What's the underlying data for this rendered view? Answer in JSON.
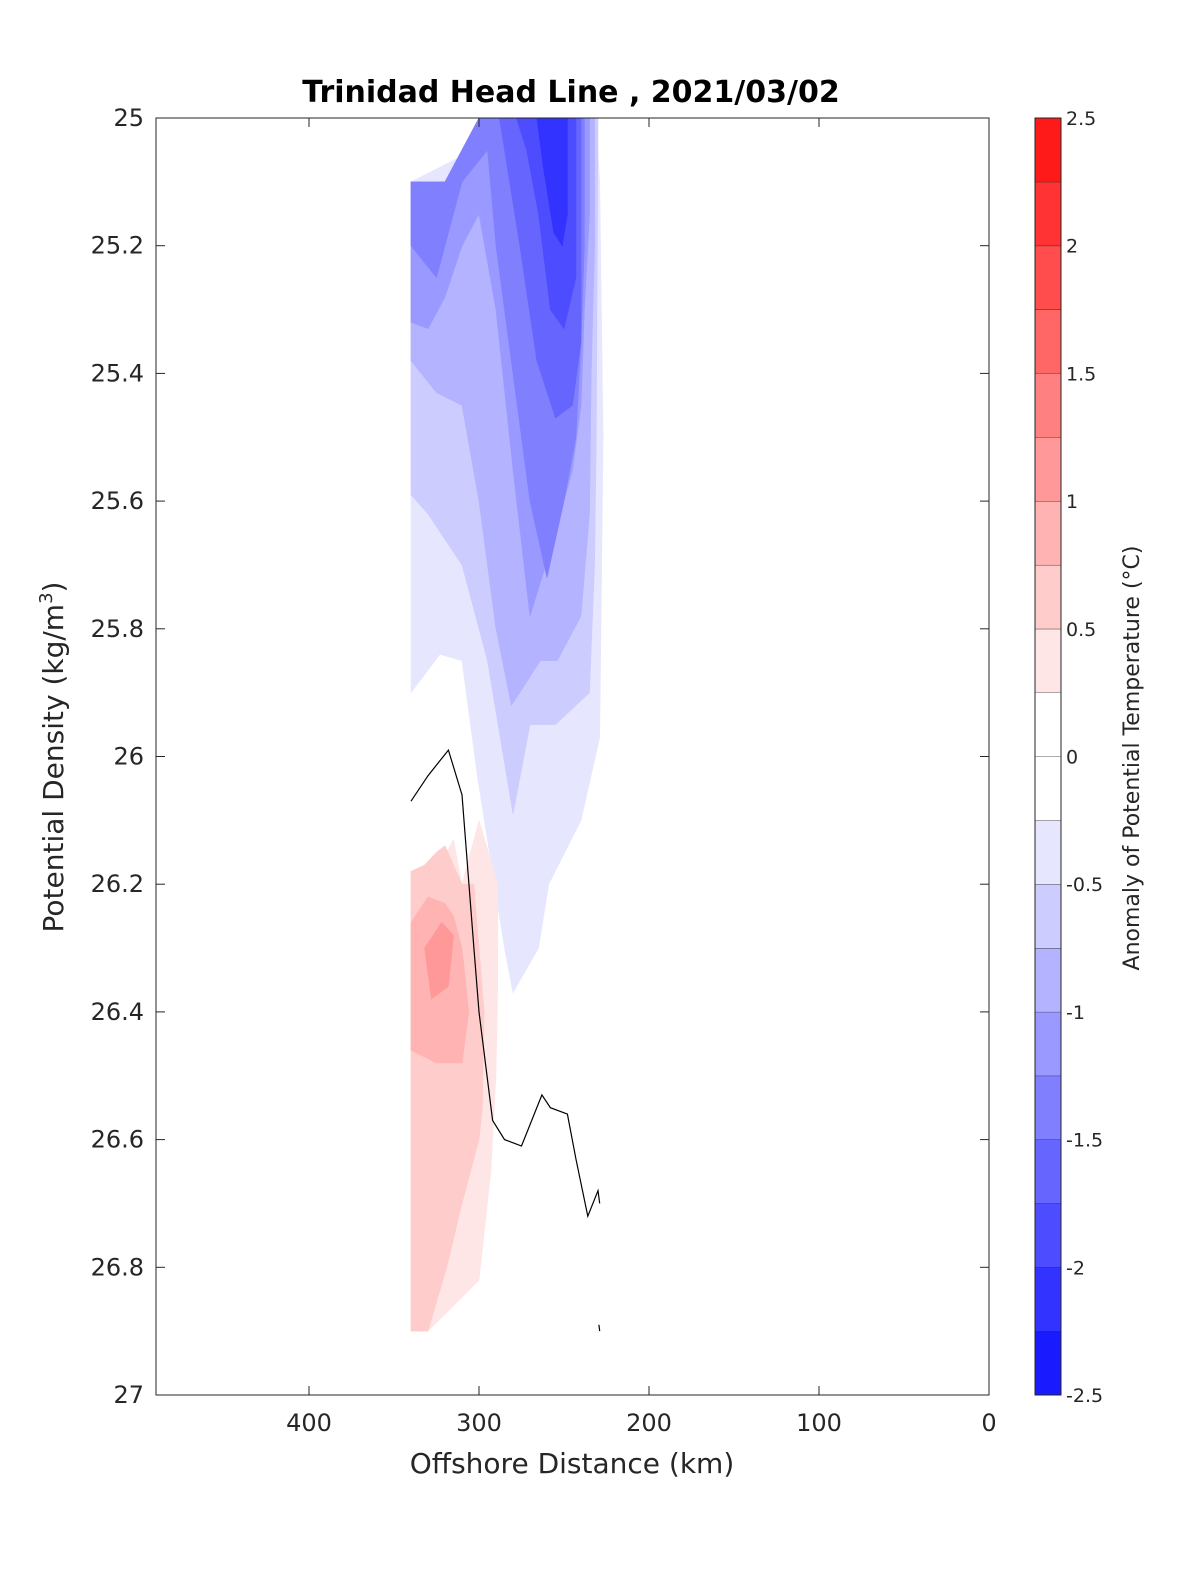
{
  "chart_data": {
    "type": "contour",
    "title": "Trinidad Head Line , 2021/03/02",
    "xlabel": "Offshore Distance (km)",
    "ylabel": "Potential Density (kg/m",
    "ylabel_sup": "3",
    "ylabel_suffix": ")",
    "xlim": [
      490,
      0
    ],
    "ylim": [
      25,
      27
    ],
    "x_reversed": true,
    "y_reversed": true,
    "xticks": [
      400,
      300,
      200,
      100,
      0
    ],
    "xtick_labels": [
      "400",
      "300",
      "200",
      "100",
      "0"
    ],
    "yticks": [
      25,
      25.2,
      25.4,
      25.6,
      25.8,
      26,
      26.2,
      26.4,
      26.6,
      26.8,
      27
    ],
    "ytick_labels": [
      "25",
      "25.2",
      "25.4",
      "25.6",
      "25.8",
      "26",
      "26.2",
      "26.4",
      "26.6",
      "26.8",
      "27"
    ],
    "colorbar": {
      "label": "Anomaly of Potential Temperature (°C)",
      "range": [
        -2.5,
        2.5
      ],
      "levels": [
        -2.5,
        -2.25,
        -2,
        -1.75,
        -1.5,
        -1.25,
        -1,
        -0.75,
        -0.5,
        -0.25,
        0,
        0.25,
        0.5,
        0.75,
        1,
        1.25,
        1.5,
        1.75,
        2,
        2.25,
        2.5
      ],
      "ticks": [
        2.5,
        2,
        1.5,
        1,
        0.5,
        0,
        -0.5,
        -1,
        -1.5,
        -2,
        -2.5
      ],
      "tick_labels": [
        "2.5",
        "2",
        "1.5",
        "1",
        "0.5",
        "0",
        "-0.5",
        "-1",
        "-1.5",
        "-2",
        "-2.5"
      ],
      "colors": [
        "#0000ff",
        "#1a1aff",
        "#3333ff",
        "#4d4dff",
        "#6666ff",
        "#8080ff",
        "#9999ff",
        "#b3b3ff",
        "#ccccff",
        "#e6e6ff",
        "#ffffff",
        "#ffffff",
        "#ffe6e6",
        "#ffcccc",
        "#ffb3b3",
        "#ff9999",
        "#ff8080",
        "#ff6666",
        "#ff4d4d",
        "#ff3333",
        "#ff1a1a",
        "#ff0000"
      ]
    },
    "filled_regions": [
      {
        "min": -0.5,
        "max": -0.25,
        "color": "#e6e6ff",
        "x": [
          340,
          340,
          323,
          310,
          301,
          285,
          280,
          265,
          259,
          240,
          229,
          227,
          228,
          229,
          230,
          231,
          240,
          251,
          262,
          266,
          340
        ],
        "y": [
          25.1,
          25.9,
          25.84,
          25.85,
          26.03,
          26.3,
          26.37,
          26.3,
          26.2,
          26.1,
          25.97,
          25.5,
          25.3,
          25.1,
          25.05,
          25,
          25,
          25,
          25,
          25,
          25.1
        ]
      },
      {
        "min": -0.75,
        "max": -0.5,
        "color": "#ccccff",
        "x": [
          340,
          340,
          330,
          310,
          295,
          280,
          270,
          255,
          235,
          232,
          231,
          230,
          240,
          255,
          268,
          300,
          320,
          340
        ],
        "y": [
          25.1,
          25.59,
          25.62,
          25.7,
          25.85,
          26.09,
          25.95,
          25.95,
          25.9,
          25.7,
          25.5,
          25,
          25,
          25,
          25,
          25,
          25.1,
          25.1
        ]
      },
      {
        "min": -1,
        "max": -0.75,
        "color": "#b3b3ff",
        "x": [
          340,
          340,
          325,
          310,
          300,
          290,
          281,
          276,
          264,
          254,
          240,
          235,
          234,
          232,
          232,
          250,
          268,
          300,
          320,
          340
        ],
        "y": [
          25.1,
          25.38,
          25.43,
          25.45,
          25.6,
          25.8,
          25.92,
          25.9,
          25.85,
          25.85,
          25.78,
          25.62,
          25.4,
          25.2,
          25,
          25,
          25,
          25,
          25.1,
          25.1
        ]
      },
      {
        "min": -1.25,
        "max": -0.5,
        "color": "#9999ff",
        "x": [
          340,
          340,
          330,
          320,
          310,
          300,
          290,
          280,
          270,
          255,
          245,
          240,
          238,
          235,
          235,
          250,
          268,
          300,
          320,
          340
        ],
        "y": [
          25.1,
          25.32,
          25.33,
          25.28,
          25.2,
          25.15,
          25.3,
          25.55,
          25.78,
          25.65,
          25.55,
          25.45,
          25.3,
          25.15,
          25,
          25,
          25,
          25,
          25.1,
          25.1
        ]
      },
      {
        "min": -1.5,
        "max": -1.25,
        "color": "#8080ff",
        "x": [
          340,
          340,
          325,
          310,
          295,
          290,
          280,
          270,
          260,
          250,
          243,
          240,
          238,
          238,
          250,
          265,
          285,
          300,
          320,
          340
        ],
        "y": [
          25.1,
          25.2,
          25.25,
          25.1,
          25.05,
          25.2,
          25.4,
          25.6,
          25.72,
          25.6,
          25.5,
          25.35,
          25.2,
          25,
          25,
          25,
          25,
          25,
          25.1,
          25.1
        ]
      },
      {
        "min": -1.5,
        "max": -1.25,
        "color": "#6666ff",
        "x": [
          288,
          282,
          276,
          266,
          255,
          245,
          240,
          240,
          250,
          262,
          278,
          288
        ],
        "y": [
          25,
          25.1,
          25.2,
          25.38,
          25.47,
          25.45,
          25.35,
          25,
          25,
          25,
          25,
          25
        ]
      },
      {
        "min": -1.75,
        "max": -1.5,
        "color": "#4d4dff",
        "x": [
          278,
          272,
          265,
          258,
          250,
          243,
          243,
          252,
          262,
          272,
          278
        ],
        "y": [
          25,
          25.05,
          25.15,
          25.3,
          25.33,
          25.25,
          25,
          25,
          25,
          25,
          25
        ]
      },
      {
        "min": -2,
        "max": -1.75,
        "color": "#3333ff",
        "x": [
          266,
          262,
          256,
          251,
          248,
          248,
          255,
          262,
          266
        ],
        "y": [
          25,
          25.08,
          25.18,
          25.2,
          25.15,
          25,
          25,
          25,
          25
        ]
      },
      {
        "min": 0.25,
        "max": 0.5,
        "color": "#ffe6e6",
        "x": [
          340,
          340,
          330,
          300,
          293,
          290,
          289,
          289,
          300,
          310,
          315,
          323,
          340
        ],
        "y": [
          26.18,
          26.9,
          26.9,
          26.82,
          26.65,
          26.5,
          26.36,
          26.2,
          26.1,
          26.2,
          26.13,
          26.17,
          26.18
        ]
      },
      {
        "min": 0.5,
        "max": 0.75,
        "color": "#ffcccc",
        "x": [
          340,
          340,
          330,
          319,
          310,
          300,
          298,
          297,
          300,
          303,
          310,
          320,
          325,
          332,
          340
        ],
        "y": [
          26.18,
          26.9,
          26.9,
          26.8,
          26.7,
          26.6,
          26.55,
          26.4,
          26.3,
          26.2,
          26.2,
          26.14,
          26.15,
          26.17,
          26.18
        ]
      },
      {
        "min": 0.75,
        "max": 1,
        "color": "#ffb3b3",
        "x": [
          340,
          340,
          325,
          310,
          306,
          310,
          315,
          320,
          330,
          340
        ],
        "y": [
          26.26,
          26.46,
          26.48,
          26.48,
          26.4,
          26.3,
          26.25,
          26.23,
          26.22,
          26.26
        ]
      },
      {
        "min": 1,
        "max": 1.25,
        "color": "#ff9999",
        "x": [
          332,
          328,
          318,
          315,
          322,
          332
        ],
        "y": [
          26.3,
          26.38,
          26.36,
          26.28,
          26.26,
          26.3
        ]
      }
    ],
    "zero_contour": {
      "color": "#000000",
      "x": [
        340,
        330,
        318,
        310,
        303,
        300,
        292,
        285,
        275,
        263,
        258,
        248,
        243,
        236,
        230,
        229
      ],
      "y": [
        26.07,
        26.03,
        25.99,
        26.06,
        26.3,
        26.4,
        26.57,
        26.6,
        26.61,
        26.53,
        26.55,
        26.56,
        26.63,
        26.72,
        26.68,
        26.7
      ]
    },
    "zero_contour_fragment": {
      "x": [
        229,
        229.5
      ],
      "y": [
        26.9,
        26.89
      ]
    }
  }
}
